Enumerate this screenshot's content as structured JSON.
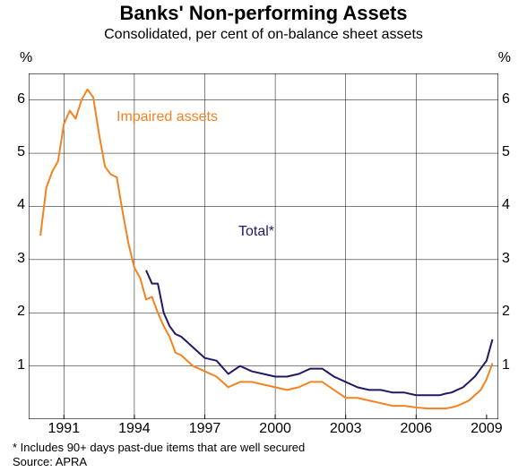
{
  "chart": {
    "type": "line",
    "title": "Banks' Non-performing Assets",
    "subtitle": "Consolidated, per cent of on-balance sheet assets",
    "title_fontsize": 22,
    "subtitle_fontsize": 16,
    "y_unit": "%",
    "background_color": "#ffffff",
    "border_color": "#000000",
    "grid_color": "#000000",
    "grid_width": 0.5,
    "x_range_years": [
      1989.5,
      2009.5
    ],
    "y_range": [
      0,
      6.5
    ],
    "y_ticks": [
      1,
      2,
      3,
      4,
      5,
      6
    ],
    "x_tick_years": [
      1991,
      1994,
      1997,
      2000,
      2003,
      2006,
      2009
    ],
    "tick_fontsize": 16,
    "series": [
      {
        "name": "Impaired assets",
        "label": "Impaired assets",
        "label_pos_frac": [
          0.19,
          0.9
        ],
        "color": "#f58220",
        "line_width": 2,
        "points": [
          [
            1990.0,
            3.45
          ],
          [
            1990.25,
            4.35
          ],
          [
            1990.5,
            4.65
          ],
          [
            1990.75,
            4.85
          ],
          [
            1991.0,
            5.55
          ],
          [
            1991.25,
            5.8
          ],
          [
            1991.5,
            5.65
          ],
          [
            1991.75,
            6.0
          ],
          [
            1992.0,
            6.2
          ],
          [
            1992.25,
            6.05
          ],
          [
            1992.5,
            5.35
          ],
          [
            1992.75,
            4.75
          ],
          [
            1993.0,
            4.6
          ],
          [
            1993.25,
            4.55
          ],
          [
            1993.5,
            3.9
          ],
          [
            1993.75,
            3.3
          ],
          [
            1994.0,
            2.85
          ],
          [
            1994.25,
            2.65
          ],
          [
            1994.5,
            2.25
          ],
          [
            1994.75,
            2.3
          ],
          [
            1995.0,
            2.0
          ],
          [
            1995.25,
            1.75
          ],
          [
            1995.5,
            1.55
          ],
          [
            1995.75,
            1.25
          ],
          [
            1996.0,
            1.2
          ],
          [
            1996.5,
            1.0
          ],
          [
            1997.0,
            0.9
          ],
          [
            1997.5,
            0.8
          ],
          [
            1998.0,
            0.6
          ],
          [
            1998.5,
            0.7
          ],
          [
            1999.0,
            0.7
          ],
          [
            1999.5,
            0.65
          ],
          [
            2000.0,
            0.6
          ],
          [
            2000.5,
            0.55
          ],
          [
            2001.0,
            0.6
          ],
          [
            2001.5,
            0.7
          ],
          [
            2002.0,
            0.7
          ],
          [
            2002.5,
            0.55
          ],
          [
            2003.0,
            0.4
          ],
          [
            2003.5,
            0.4
          ],
          [
            2004.0,
            0.35
          ],
          [
            2004.5,
            0.3
          ],
          [
            2005.0,
            0.25
          ],
          [
            2005.5,
            0.25
          ],
          [
            2006.0,
            0.22
          ],
          [
            2006.5,
            0.2
          ],
          [
            2007.0,
            0.2
          ],
          [
            2007.25,
            0.2
          ],
          [
            2007.5,
            0.22
          ],
          [
            2007.75,
            0.25
          ],
          [
            2008.0,
            0.3
          ],
          [
            2008.25,
            0.35
          ],
          [
            2008.5,
            0.45
          ],
          [
            2008.75,
            0.55
          ],
          [
            2009.0,
            0.75
          ],
          [
            2009.25,
            1.05
          ]
        ]
      },
      {
        "name": "Total",
        "label": "Total*",
        "label_pos_frac": [
          0.45,
          0.57
        ],
        "color": "#1f1a66",
        "line_width": 2,
        "points": [
          [
            1994.5,
            2.8
          ],
          [
            1994.75,
            2.55
          ],
          [
            1995.0,
            2.55
          ],
          [
            1995.25,
            2.0
          ],
          [
            1995.5,
            1.75
          ],
          [
            1995.75,
            1.6
          ],
          [
            1996.0,
            1.55
          ],
          [
            1996.5,
            1.35
          ],
          [
            1997.0,
            1.15
          ],
          [
            1997.5,
            1.1
          ],
          [
            1998.0,
            0.85
          ],
          [
            1998.5,
            1.0
          ],
          [
            1999.0,
            0.9
          ],
          [
            1999.5,
            0.85
          ],
          [
            2000.0,
            0.8
          ],
          [
            2000.5,
            0.8
          ],
          [
            2001.0,
            0.85
          ],
          [
            2001.5,
            0.95
          ],
          [
            2002.0,
            0.95
          ],
          [
            2002.5,
            0.8
          ],
          [
            2003.0,
            0.7
          ],
          [
            2003.5,
            0.6
          ],
          [
            2004.0,
            0.55
          ],
          [
            2004.5,
            0.55
          ],
          [
            2005.0,
            0.5
          ],
          [
            2005.5,
            0.5
          ],
          [
            2006.0,
            0.45
          ],
          [
            2006.5,
            0.45
          ],
          [
            2007.0,
            0.45
          ],
          [
            2007.25,
            0.48
          ],
          [
            2007.5,
            0.5
          ],
          [
            2007.75,
            0.55
          ],
          [
            2008.0,
            0.6
          ],
          [
            2008.25,
            0.7
          ],
          [
            2008.5,
            0.8
          ],
          [
            2008.75,
            0.95
          ],
          [
            2009.0,
            1.1
          ],
          [
            2009.25,
            1.5
          ]
        ]
      }
    ]
  },
  "footnote": "*  Includes 90+ days past-due items that are well secured",
  "source": "Source: APRA",
  "footer_fontsize": 13
}
